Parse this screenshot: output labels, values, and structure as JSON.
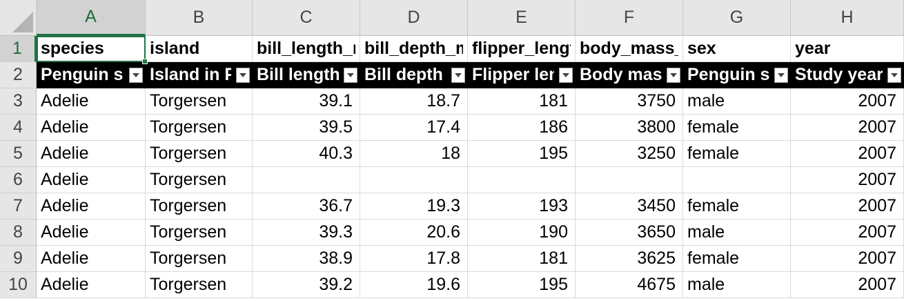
{
  "sheet": {
    "columns": [
      "A",
      "B",
      "C",
      "D",
      "E",
      "F",
      "G",
      "H"
    ],
    "selected_column": "A",
    "selected_row": 1,
    "rows": [
      {
        "number": "1",
        "cells": [
          "species",
          "island",
          "bill_length_mm",
          "bill_depth_mm",
          "flipper_length_mm",
          "body_mass_g",
          "sex",
          "year"
        ]
      },
      {
        "number": "2",
        "cells": [
          "Penguin species",
          "Island in Palmer Archipelago",
          "Bill length (mm)",
          "Bill depth (mm)",
          "Flipper length (mm)",
          "Body mass (g)",
          "Penguin sex",
          "Study year"
        ]
      },
      {
        "number": "3",
        "cells": [
          "Adelie",
          "Torgersen",
          "39.1",
          "18.7",
          "181",
          "3750",
          "male",
          "2007"
        ]
      },
      {
        "number": "4",
        "cells": [
          "Adelie",
          "Torgersen",
          "39.5",
          "17.4",
          "186",
          "3800",
          "female",
          "2007"
        ]
      },
      {
        "number": "5",
        "cells": [
          "Adelie",
          "Torgersen",
          "40.3",
          "18",
          "195",
          "3250",
          "female",
          "2007"
        ]
      },
      {
        "number": "6",
        "cells": [
          "Adelie",
          "Torgersen",
          "",
          "",
          "",
          "",
          "",
          "2007"
        ]
      },
      {
        "number": "7",
        "cells": [
          "Adelie",
          "Torgersen",
          "36.7",
          "19.3",
          "193",
          "3450",
          "female",
          "2007"
        ]
      },
      {
        "number": "8",
        "cells": [
          "Adelie",
          "Torgersen",
          "39.3",
          "20.6",
          "190",
          "3650",
          "male",
          "2007"
        ]
      },
      {
        "number": "9",
        "cells": [
          "Adelie",
          "Torgersen",
          "38.9",
          "17.8",
          "181",
          "3625",
          "female",
          "2007"
        ]
      },
      {
        "number": "10",
        "cells": [
          "Adelie",
          "Torgersen",
          "39.2",
          "19.6",
          "195",
          "4675",
          "male",
          "2007"
        ]
      }
    ]
  },
  "colors": {
    "selection": "#217346",
    "header_row_bg": "#000000",
    "header_row_text": "#ffffff"
  },
  "icons": [
    "filter-dropdown-icon"
  ]
}
